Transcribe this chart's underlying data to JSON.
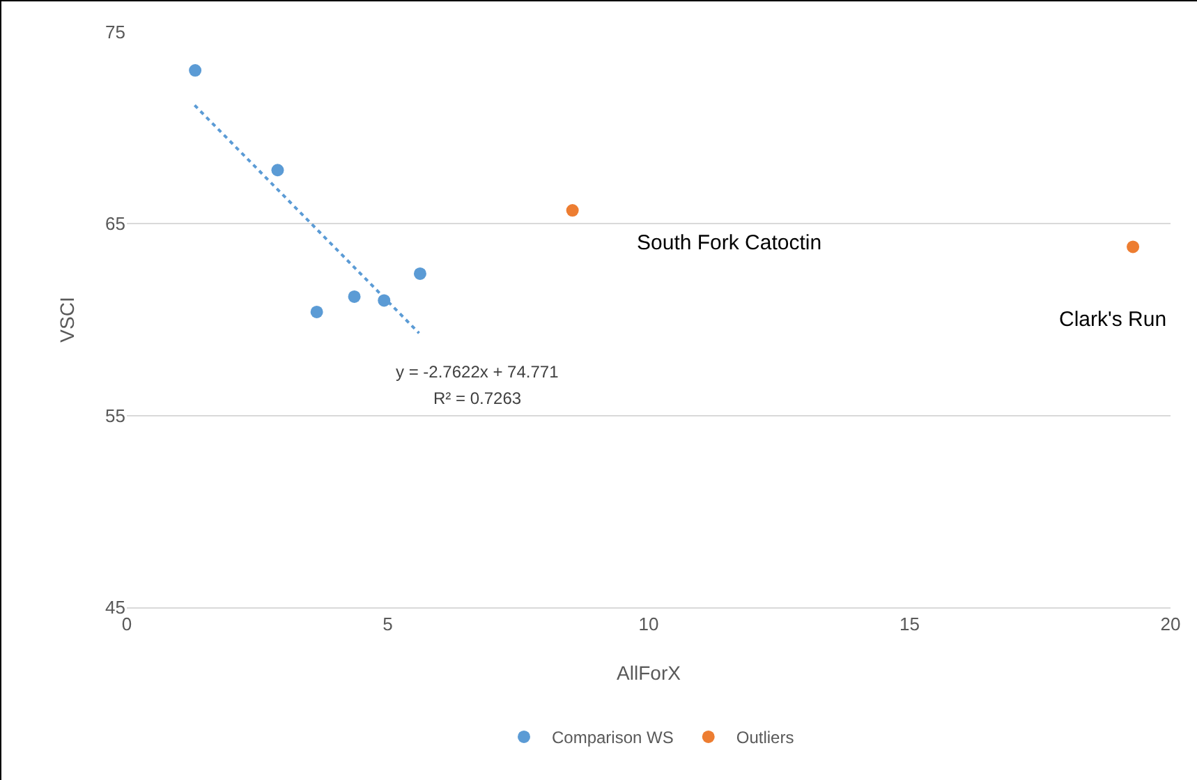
{
  "chart_data": {
    "type": "scatter",
    "xlabel": "AllForX",
    "ylabel": "VSCI",
    "series": [
      {
        "name": "Comparison WS",
        "color": "#5b9bd5",
        "x": [
          1.31,
          2.89,
          3.64,
          4.36,
          4.93,
          5.62
        ],
        "values": [
          73.0,
          67.8,
          60.4,
          61.2,
          61.0,
          62.4
        ]
      },
      {
        "name": "Outliers",
        "color": "#ed7d31",
        "x": [
          8.54,
          19.28
        ],
        "values": [
          65.7,
          63.8
        ]
      },
      {
        "type": "line",
        "color": "#5b9bd5",
        "line_style": "dotted",
        "marker": "none",
        "x": [
          1.3,
          5.6
        ],
        "values": [
          71.18,
          59.3
        ]
      }
    ],
    "xlim": [
      0,
      20
    ],
    "xticks": [
      0,
      5,
      10,
      15,
      20
    ],
    "ylim": [
      45,
      75
    ],
    "yticks": [
      45,
      55,
      65,
      75
    ],
    "grid": "y",
    "legend": "bottom",
    "marker": "circle",
    "annotations": [
      "y = -2.7622x + 74.771",
      "R² = 0.7263",
      "South Fork Catoctin",
      "Clark's Run"
    ]
  }
}
